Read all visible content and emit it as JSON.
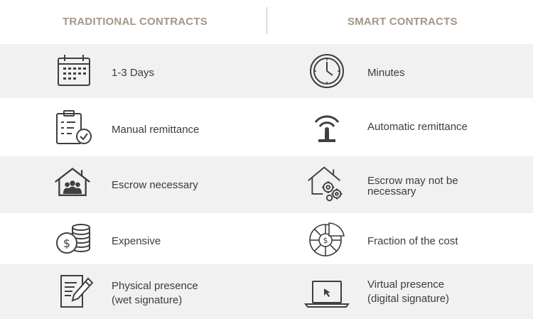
{
  "header": {
    "left_title": "TRADITIONAL CONTRACTS",
    "right_title": "SMART CONTRACTS"
  },
  "rows": [
    {
      "left": {
        "icon": "calendar-icon",
        "text": "1-3 Days"
      },
      "right": {
        "icon": "clock-icon",
        "text": "Minutes"
      }
    },
    {
      "left": {
        "icon": "clipboard-check-icon",
        "text": "Manual remittance"
      },
      "right": {
        "icon": "wireless-tower-icon",
        "text": "Automatic remittance"
      }
    },
    {
      "left": {
        "icon": "house-people-icon",
        "text": "Escrow necessary"
      },
      "right": {
        "icon": "house-gears-icon",
        "text_line1": "Escrow may not be",
        "text_line2": "necessary"
      }
    },
    {
      "left": {
        "icon": "coin-stack-icon",
        "text": "Expensive"
      },
      "right": {
        "icon": "pie-dollar-icon",
        "text": "Fraction of the cost"
      }
    },
    {
      "left": {
        "icon": "document-pen-icon",
        "text_line1": "Physical presence",
        "text_line2": "(wet signature)"
      },
      "right": {
        "icon": "laptop-cursor-icon",
        "text_line1": "Virtual presence",
        "text_line2": "(digital signature)"
      }
    }
  ],
  "colors": {
    "accent": "#a69582",
    "row_shade": "#f1f1f1",
    "icon_stroke": "#3f3f3f",
    "text": "#3c3c3c"
  }
}
